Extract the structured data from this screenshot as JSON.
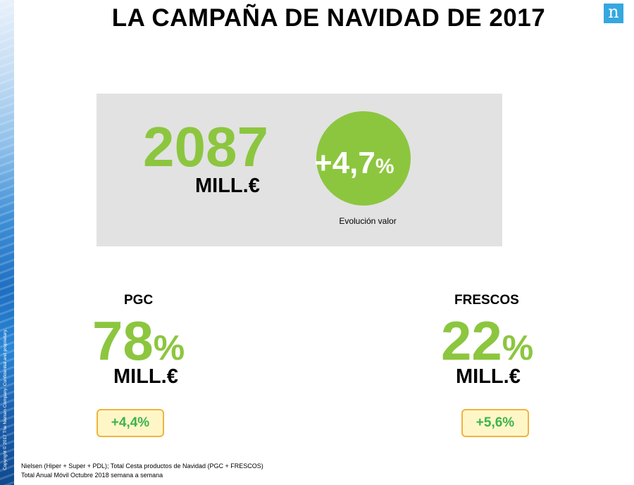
{
  "slide": {
    "title": "LA CAMPAÑA DE NAVIDAD DE 2017",
    "copyright": "Copyright © 2017 The Nielsen Company. Confidential and proprietary.",
    "logo_letter": "n"
  },
  "total": {
    "value": "2087",
    "unit": "MILL.€",
    "growth_value": "+4,7",
    "growth_unit": "%",
    "growth_caption": "Evolución valor"
  },
  "segments": [
    {
      "label": "PGC",
      "share_value": "78",
      "share_unit": "%",
      "unit": "MILL.€",
      "growth": "+4,4%"
    },
    {
      "label": "FRESCOS",
      "share_value": "22",
      "share_unit": "%",
      "unit": "MILL.€",
      "growth": "+5,6%"
    }
  ],
  "footer": {
    "source_line1": "Nielsen (Hiper + Super + PDL); Total Cesta productos de Navidad (PGC + FRESCOS)",
    "source_line2": "Total Anual Móvil Octubre 2018 semana a semana"
  },
  "colors": {
    "accent_green": "#8cc63f",
    "badge_border": "#f0b43c",
    "badge_text": "#3cb44a",
    "logo_blue": "#35a8e0",
    "panel_gray": "#e2e2e2"
  }
}
